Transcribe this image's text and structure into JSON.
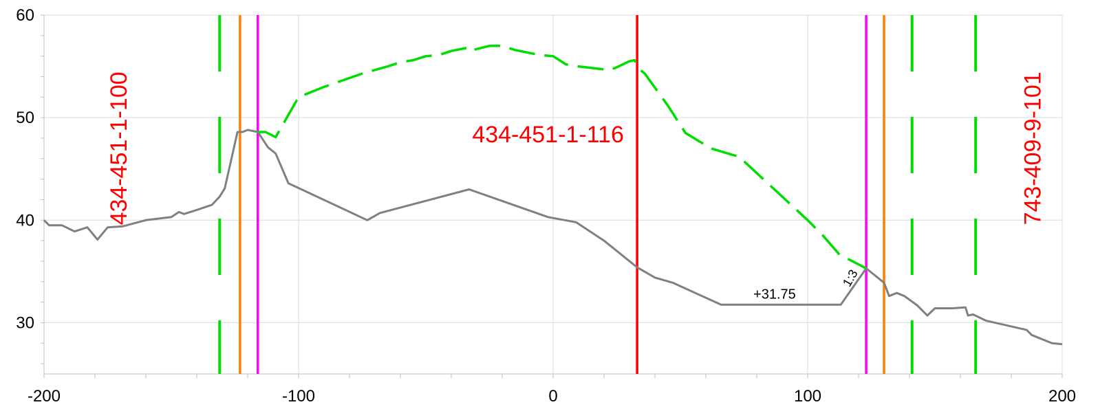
{
  "chart_data": {
    "type": "line",
    "title": "",
    "xlabel": "",
    "ylabel": "",
    "xlim": [
      -200,
      200
    ],
    "ylim": [
      25,
      60
    ],
    "x_ticks": [
      -200,
      -100,
      0,
      100,
      200
    ],
    "y_ticks": [
      30,
      40,
      50,
      60
    ],
    "x_tick_labels": [
      "-200",
      "-100",
      "0",
      "100",
      "200"
    ],
    "y_tick_labels": [
      "30",
      "40",
      "50",
      "60"
    ],
    "grid": true,
    "legend": "none",
    "series": [
      {
        "style": "solid",
        "color": "#808080",
        "points": [
          [
            -200,
            40.0
          ],
          [
            -198,
            39.5
          ],
          [
            -193,
            39.5
          ],
          [
            -188,
            38.9
          ],
          [
            -183,
            39.3
          ],
          [
            -179,
            38.1
          ],
          [
            -175,
            39.3
          ],
          [
            -169,
            39.4
          ],
          [
            -160,
            40.0
          ],
          [
            -150,
            40.3
          ],
          [
            -147,
            40.8
          ],
          [
            -145,
            40.6
          ],
          [
            -140,
            41.0
          ],
          [
            -134,
            41.5
          ],
          [
            -131,
            42.3
          ],
          [
            -129,
            43.1
          ],
          [
            -124,
            48.6
          ],
          [
            -122,
            48.6
          ],
          [
            -120,
            48.8
          ],
          [
            -116,
            48.6
          ],
          [
            -112,
            47.1
          ],
          [
            -109,
            46.5
          ],
          [
            -104,
            43.6
          ],
          [
            -73,
            40.0
          ],
          [
            -68,
            40.7
          ],
          [
            -33,
            43.0
          ],
          [
            -2,
            40.3
          ],
          [
            9,
            39.8
          ],
          [
            20,
            38.0
          ],
          [
            33,
            35.4
          ],
          [
            40,
            34.4
          ],
          [
            47,
            33.9
          ],
          [
            66,
            31.75
          ],
          [
            113,
            31.75
          ],
          [
            123,
            35.3
          ],
          [
            130,
            33.9
          ],
          [
            132,
            32.6
          ],
          [
            135,
            32.9
          ],
          [
            138,
            32.6
          ],
          [
            143,
            31.7
          ],
          [
            147,
            30.7
          ],
          [
            150,
            31.4
          ],
          [
            157,
            31.4
          ],
          [
            162,
            31.5
          ],
          [
            163,
            30.7
          ],
          [
            165,
            30.8
          ],
          [
            170,
            30.2
          ],
          [
            186,
            29.3
          ],
          [
            188,
            28.8
          ],
          [
            196,
            28.0
          ],
          [
            200,
            27.9
          ]
        ]
      },
      {
        "style": "dashed",
        "color": "#00dd00",
        "points": [
          [
            -116,
            48.6
          ],
          [
            -113,
            48.6
          ],
          [
            -109,
            48.1
          ],
          [
            -100,
            52.0
          ],
          [
            -90,
            53.0
          ],
          [
            -75,
            54.3
          ],
          [
            -65,
            55.0
          ],
          [
            -60,
            55.4
          ],
          [
            -55,
            55.6
          ],
          [
            -50,
            56.0
          ],
          [
            -45,
            56.1
          ],
          [
            -40,
            56.5
          ],
          [
            -34,
            56.8
          ],
          [
            -33,
            56.5
          ],
          [
            -25,
            57.0
          ],
          [
            -20,
            57.0
          ],
          [
            -15,
            56.6
          ],
          [
            -5,
            56.1
          ],
          [
            0,
            56.0
          ],
          [
            5,
            55.2
          ],
          [
            10,
            55.0
          ],
          [
            20,
            54.7
          ],
          [
            22,
            54.9
          ],
          [
            24,
            54.8
          ],
          [
            30,
            55.5
          ],
          [
            32,
            55.6
          ],
          [
            34,
            54.7
          ],
          [
            36,
            54.3
          ],
          [
            45,
            51.2
          ],
          [
            52,
            48.5
          ],
          [
            62,
            47.0
          ],
          [
            70,
            46.4
          ],
          [
            73,
            46.2
          ],
          [
            100,
            40.0
          ],
          [
            106,
            38.5
          ],
          [
            113,
            36.5
          ],
          [
            116,
            36.2
          ],
          [
            123,
            35.3
          ]
        ]
      }
    ],
    "reference_lines": [
      {
        "x": -131,
        "color": "#00dd00",
        "style": "dashed"
      },
      {
        "x": -123,
        "color": "#ff8000",
        "style": "solid"
      },
      {
        "x": -116,
        "color": "#ff00ff",
        "style": "solid"
      },
      {
        "x": 33,
        "color": "#ff0000",
        "style": "solid"
      },
      {
        "x": 123,
        "color": "#ff00ff",
        "style": "solid"
      },
      {
        "x": 130,
        "color": "#ff8000",
        "style": "solid"
      },
      {
        "x": 141,
        "color": "#00dd00",
        "style": "dashed"
      },
      {
        "x": 166,
        "color": "#00dd00",
        "style": "dashed"
      }
    ],
    "annotations": [
      {
        "text": "434-451-1-100",
        "x": -170,
        "y": 47,
        "rotate": -90,
        "color": "#ff0000"
      },
      {
        "text": "434-451-1-116",
        "x": -2,
        "y": 48.2,
        "rotate": 0,
        "color": "#ff0000"
      },
      {
        "text": "743-409-9-101",
        "x": 189,
        "y": 47,
        "rotate": -90,
        "color": "#ff0000"
      },
      {
        "text": "+31.75",
        "x": 87,
        "y": 32.7,
        "rotate": 0,
        "color": "#000000"
      },
      {
        "text": "1:3",
        "x": 117,
        "y": 34.3,
        "rotate": -60,
        "color": "#000000"
      }
    ]
  }
}
